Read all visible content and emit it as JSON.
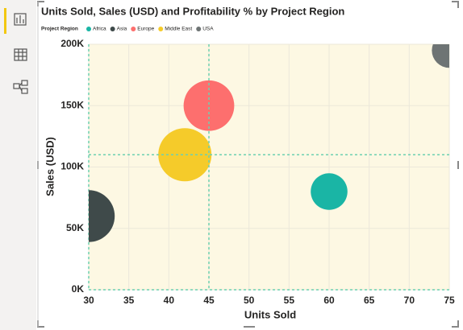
{
  "chart_data": {
    "type": "bubble",
    "title": "Units Sold, Sales (USD) and Profitability % by Project Region",
    "legend_title": "Project Region",
    "x_label": "Units Sold",
    "y_label": "Sales (USD)",
    "series": [
      {
        "name": "Africa",
        "color": "#1ab5a5",
        "x": [
          60
        ],
        "values": [
          80000
        ],
        "sizes": [
          10
        ]
      },
      {
        "name": "Asia",
        "color": "#3f4a4a",
        "x": [
          30
        ],
        "values": [
          60000
        ],
        "sizes": [
          20
        ]
      },
      {
        "name": "Europe",
        "color": "#fd6f6e",
        "x": [
          45
        ],
        "values": [
          150000
        ],
        "sizes": [
          19
        ]
      },
      {
        "name": "Middle East",
        "color": "#f5cb2a",
        "x": [
          42
        ],
        "values": [
          110000
        ],
        "sizes": [
          21
        ]
      },
      {
        "name": "USA",
        "color": "#6e7474",
        "x": [
          75
        ],
        "values": [
          195000
        ],
        "sizes": [
          9
        ]
      }
    ],
    "xlim": [
      30,
      75
    ],
    "xticks": [
      30,
      35,
      40,
      45,
      50,
      55,
      60,
      65,
      70,
      75
    ],
    "ylim": [
      0,
      200000
    ],
    "yticks": [
      {
        "value": 0,
        "label": "0K"
      },
      {
        "value": 50000,
        "label": "50K"
      },
      {
        "value": 100000,
        "label": "100K"
      },
      {
        "value": 150000,
        "label": "150K"
      },
      {
        "value": 200000,
        "label": "200K"
      }
    ],
    "x_reference_line": 45,
    "y_reference_line": 110000,
    "grid": true
  }
}
